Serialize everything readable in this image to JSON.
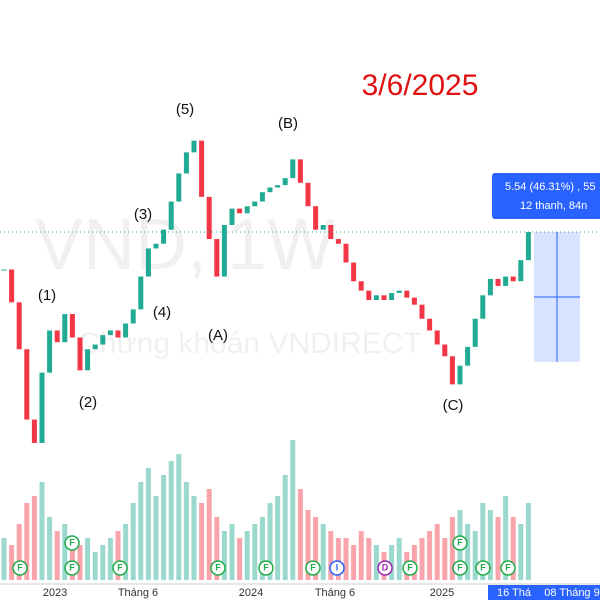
{
  "chart_data": {
    "type": "candlestick",
    "closes": [
      15.9,
      14.5,
      12.5,
      9.5,
      8.5,
      11.5,
      13.3,
      12.8,
      14.0,
      13.0,
      11.6,
      12.5,
      12.7,
      13.1,
      13.3,
      13.0,
      13.6,
      14.2,
      15.6,
      16.8,
      17.0,
      17.6,
      18.8,
      20.0,
      20.9,
      21.4,
      19.0,
      17.2,
      15.6,
      17.8,
      18.5,
      18.3,
      18.6,
      18.8,
      19.2,
      19.4,
      19.5,
      19.8,
      20.6,
      19.6,
      18.6,
      17.6,
      17.8,
      17.2,
      17.0,
      16.2,
      15.4,
      15.0,
      14.6,
      14.8,
      14.6,
      14.9,
      15.0,
      14.7,
      14.4,
      13.8,
      13.3,
      12.7,
      12.2,
      11.0,
      11.8,
      12.6,
      13.8,
      14.8,
      15.5,
      15.2,
      15.6,
      15.4,
      16.3,
      17.5
    ],
    "volumes": [
      30,
      25,
      40,
      55,
      60,
      70,
      45,
      35,
      40,
      30,
      25,
      30,
      20,
      25,
      30,
      35,
      40,
      55,
      70,
      80,
      60,
      75,
      85,
      90,
      70,
      60,
      55,
      65,
      45,
      35,
      40,
      30,
      35,
      40,
      45,
      55,
      60,
      75,
      100,
      65,
      50,
      45,
      40,
      35,
      30,
      30,
      25,
      35,
      30,
      25,
      20,
      25,
      30,
      20,
      25,
      30,
      35,
      40,
      30,
      45,
      50,
      40,
      35,
      55,
      50,
      45,
      60,
      45,
      40,
      55
    ],
    "ylim": [
      1.8,
      27.4
    ],
    "vlim": [
      0,
      100
    ],
    "up_color": "#22ab94",
    "down_color": "#f23645",
    "date_label": "3/6/2025",
    "watermark": "VND, 1W",
    "watermark_sub": "Chứng khoán VNDIRECT",
    "waves": [
      "(1)",
      "(2)",
      "(3)",
      "(4)",
      "(5)",
      "(A)",
      "(B)",
      "(C)"
    ],
    "measure": {
      "change": 5.54,
      "label": "5.54 (46.31%) , 55",
      "bars": "12 thanh, 84n"
    },
    "x_labels": [
      "2023",
      "Tháng 6",
      "2024",
      "Tháng 6",
      "2025"
    ],
    "cursor_labels": [
      "16 Thá",
      "08 Tháng 9"
    ],
    "events": [
      "F",
      "F",
      "F",
      "F",
      "F",
      "F",
      "F",
      "I",
      "D",
      "F",
      "F",
      "F",
      "F",
      "F"
    ]
  }
}
